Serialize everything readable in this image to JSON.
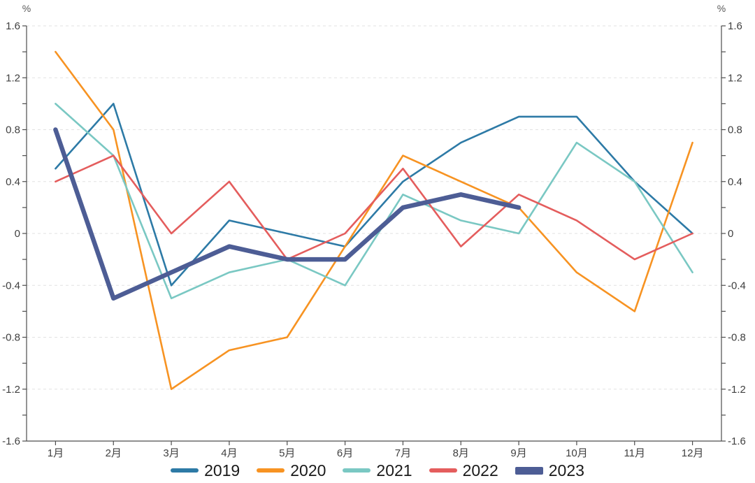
{
  "chart_data": {
    "type": "line",
    "title": "",
    "unit_left": "%",
    "unit_right": "%",
    "legend_position": "bottom",
    "grid": "horizontal dashed lines every 0.4",
    "categories": [
      "1月",
      "2月",
      "3月",
      "4月",
      "5月",
      "6月",
      "7月",
      "8月",
      "9月",
      "10月",
      "11月",
      "12月"
    ],
    "y_axis": {
      "min": -1.6,
      "max": 1.6,
      "label_step": 0.4,
      "tick_step": 0.2,
      "tick_labels": [
        "1.6",
        "1.2",
        "0.8",
        "0.4",
        "0",
        "-0.4",
        "-0.8",
        "-1.2",
        "-1.6"
      ]
    },
    "series": [
      {
        "name": "2019",
        "color": "#2d7aa6",
        "line_width": 2.6,
        "values": [
          0.5,
          1.0,
          -0.4,
          0.1,
          0.0,
          -0.1,
          0.4,
          0.7,
          0.9,
          0.9,
          0.4,
          0.0
        ]
      },
      {
        "name": "2020",
        "color": "#f79322",
        "line_width": 2.6,
        "values": [
          1.4,
          0.8,
          -1.2,
          -0.9,
          -0.8,
          -0.1,
          0.6,
          0.4,
          0.2,
          -0.3,
          -0.6,
          0.7
        ]
      },
      {
        "name": "2021",
        "color": "#7ac8c3",
        "line_width": 2.6,
        "values": [
          1.0,
          0.6,
          -0.5,
          -0.3,
          -0.2,
          -0.4,
          0.3,
          0.1,
          0.0,
          0.7,
          0.4,
          -0.3
        ]
      },
      {
        "name": "2022",
        "color": "#e45d5d",
        "line_width": 2.6,
        "values": [
          0.4,
          0.6,
          0.0,
          0.4,
          -0.2,
          0.0,
          0.5,
          -0.1,
          0.3,
          0.1,
          -0.2,
          0.0
        ]
      },
      {
        "name": "2023",
        "color": "#4d5d95",
        "line_width": 6.5,
        "values": [
          0.8,
          -0.5,
          -0.3,
          -0.1,
          -0.2,
          -0.2,
          0.2,
          0.3,
          0.2,
          null,
          null,
          null
        ]
      }
    ]
  },
  "colors": {
    "background": "#ffffff",
    "grid": "#e2e2e2",
    "axis": "#4d4d4d",
    "tick_label": "#404040",
    "unit_label": "#595959",
    "legend_text": "#1a1a1a"
  }
}
